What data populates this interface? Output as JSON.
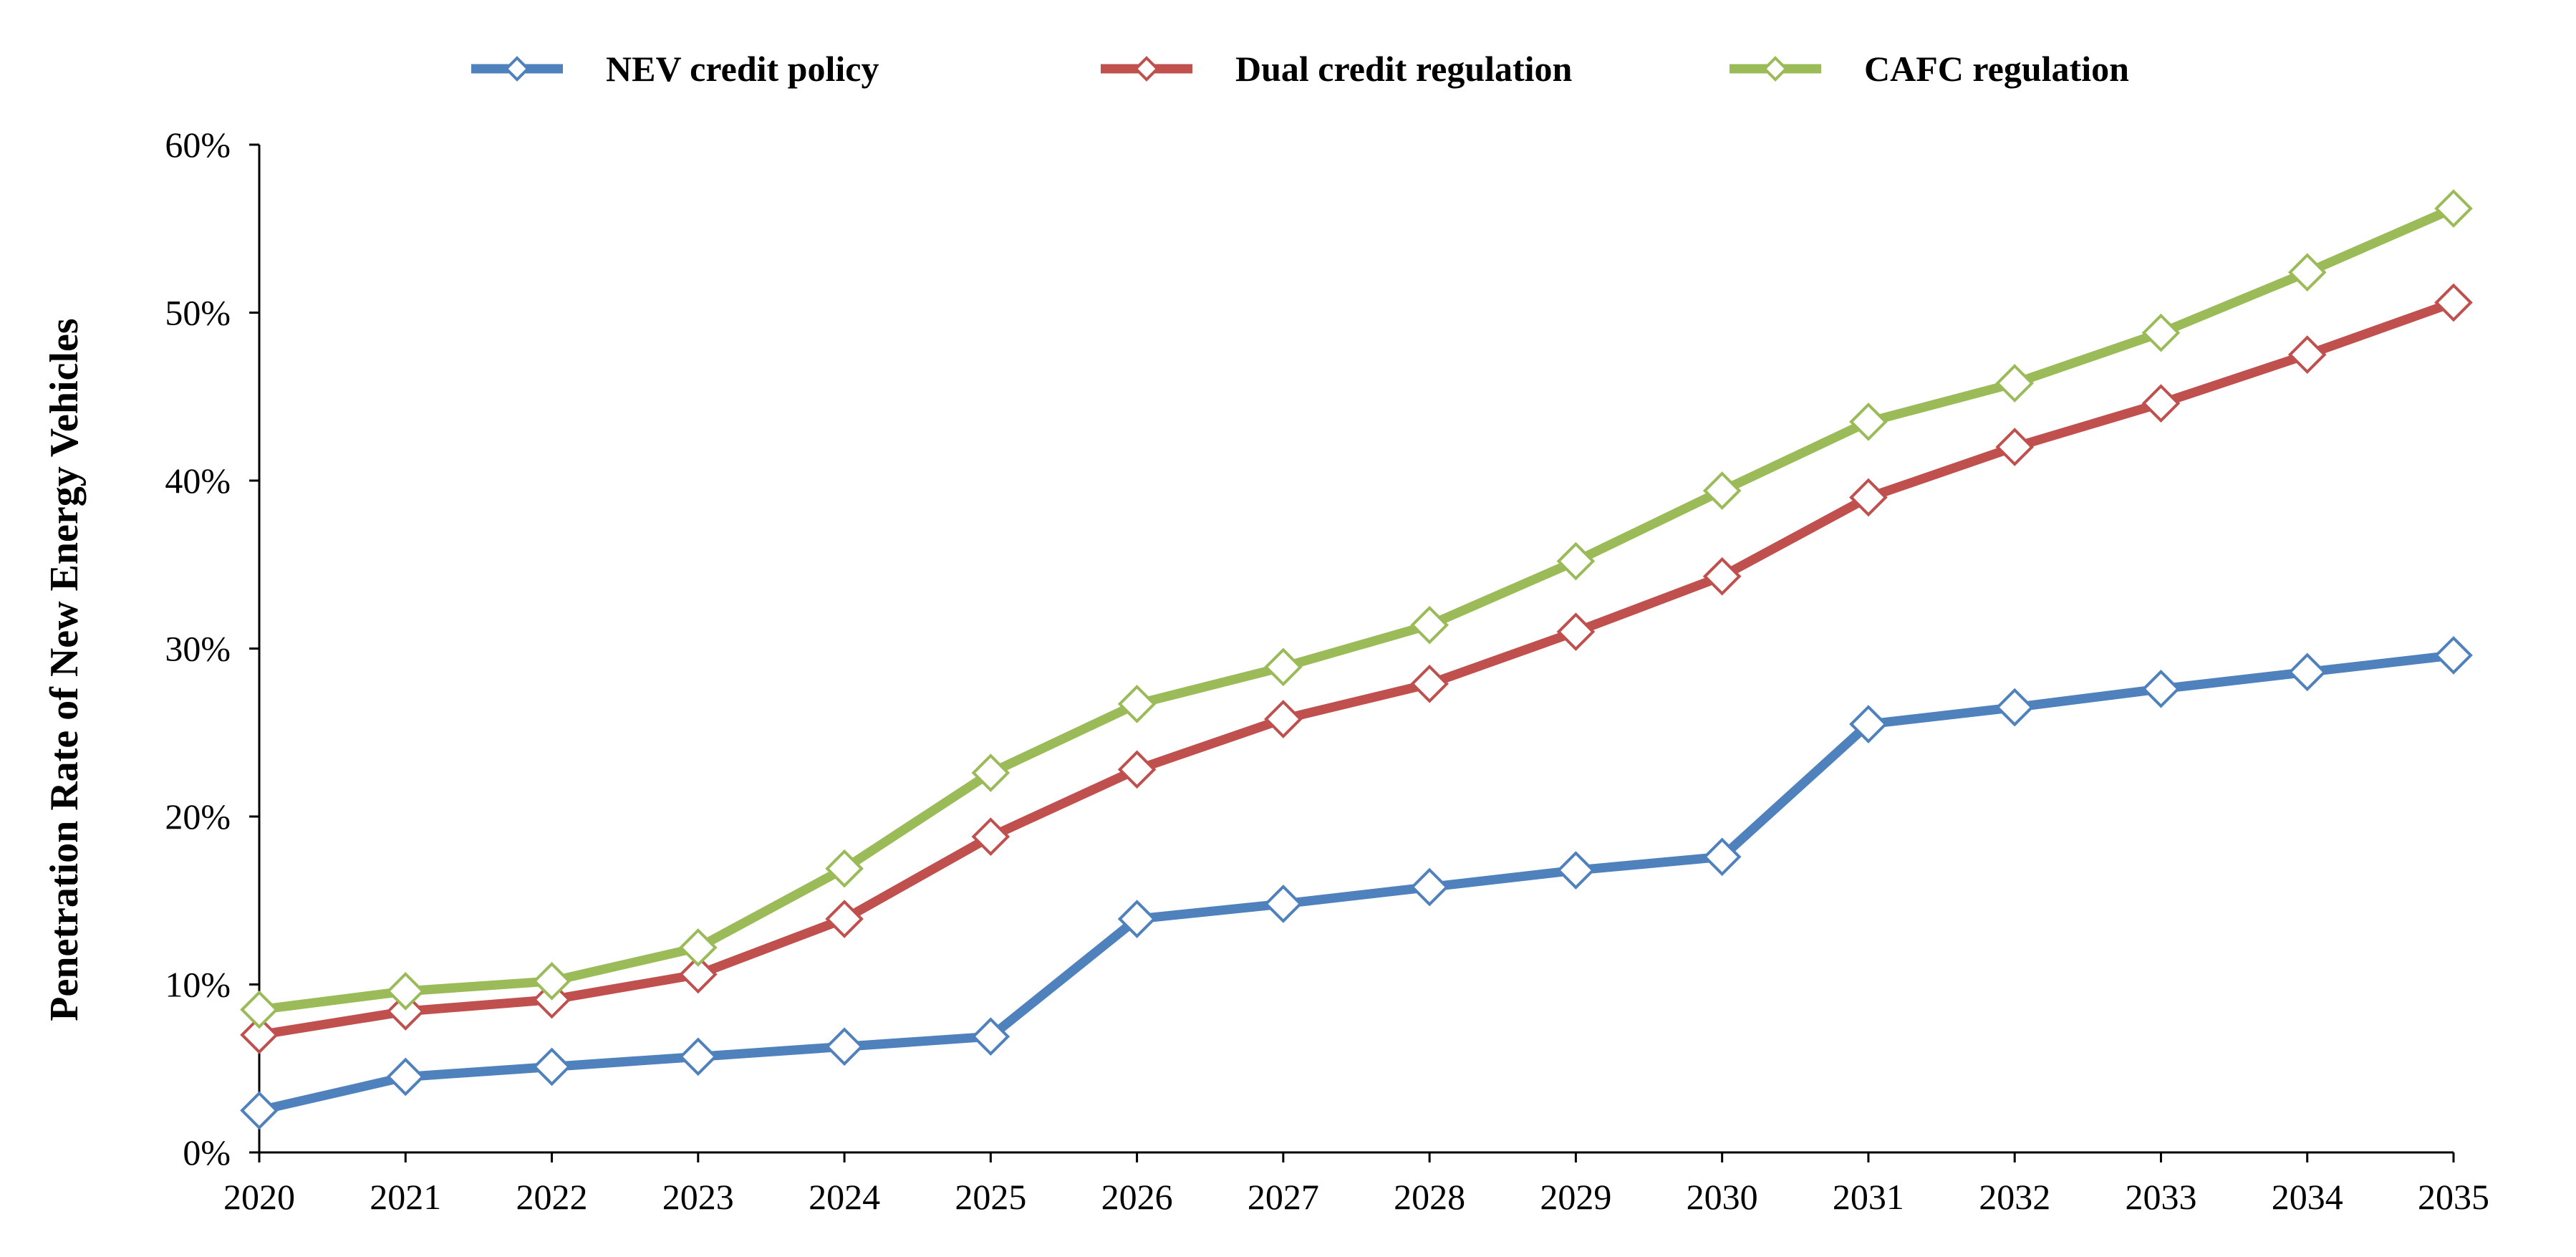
{
  "chart_data": {
    "type": "line",
    "title": "",
    "xlabel": "",
    "ylabel": "Penetration Rate of New Energy Vehicles",
    "categories": [
      "2020",
      "2021",
      "2022",
      "2023",
      "2024",
      "2025",
      "2026",
      "2027",
      "2028",
      "2029",
      "2030",
      "2031",
      "2032",
      "2033",
      "2034",
      "2035"
    ],
    "ylim": [
      0,
      0.6
    ],
    "yticks": [
      {
        "value": 0,
        "label": "0%"
      },
      {
        "value": 0.1,
        "label": "10%"
      },
      {
        "value": 0.2,
        "label": "20%"
      },
      {
        "value": 0.3,
        "label": "30%"
      },
      {
        "value": 0.4,
        "label": "40%"
      },
      {
        "value": 0.5,
        "label": "50%"
      },
      {
        "value": 0.6,
        "label": "60%"
      }
    ],
    "grid": false,
    "legend_position": "top",
    "marker": "diamond-hollow",
    "series": [
      {
        "name": "NEV credit policy",
        "color": "#4f81bd",
        "values": [
          0.025,
          0.045,
          0.051,
          0.057,
          0.063,
          0.069,
          0.139,
          0.148,
          0.158,
          0.168,
          0.176,
          0.255,
          0.265,
          0.276,
          0.286,
          0.296
        ]
      },
      {
        "name": "Dual credit regulation",
        "color": "#c0504d",
        "values": [
          0.07,
          0.084,
          0.091,
          0.106,
          0.139,
          0.188,
          0.228,
          0.258,
          0.279,
          0.31,
          0.343,
          0.39,
          0.42,
          0.446,
          0.475,
          0.506
        ]
      },
      {
        "name": "CAFC regulation",
        "color": "#9bbb59",
        "values": [
          0.085,
          0.096,
          0.102,
          0.122,
          0.169,
          0.226,
          0.267,
          0.289,
          0.314,
          0.352,
          0.394,
          0.435,
          0.458,
          0.488,
          0.524,
          0.562
        ]
      }
    ]
  }
}
